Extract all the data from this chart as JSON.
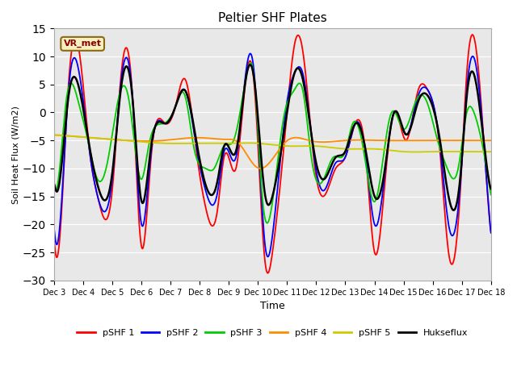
{
  "title": "Peltier SHF Plates",
  "xlabel": "Time",
  "ylabel": "Soil Heat Flux (W/m2)",
  "ylim": [
    -30,
    15
  ],
  "background_color": "#ffffff",
  "plot_bg_color": "#e8e8e8",
  "series_colors": {
    "pSHF 1": "#ff0000",
    "pSHF 2": "#0000ff",
    "pSHF 3": "#00cc00",
    "pSHF 4": "#ff8c00",
    "pSHF 5": "#cccc00",
    "Hukseflux": "#000000"
  },
  "annotation_text": "VR_met",
  "annotation_bg": "#f5f0c0",
  "annotation_border": "#8b6914",
  "annotation_text_color": "#8b0000",
  "tick_labels": [
    "Dec 3",
    "Dec 4",
    "Dec 5",
    "Dec 6",
    "Dec 7",
    "Dec 8",
    "Dec 9",
    "Dec 10",
    "Dec 11",
    "Dec 12",
    "Dec 13",
    "Dec 14",
    "Dec 15",
    "Dec 16",
    "Dec 17",
    "Dec 18"
  ],
  "tick_positions": [
    0,
    24,
    48,
    72,
    96,
    120,
    144,
    168,
    192,
    216,
    240,
    264,
    288,
    312,
    336,
    360
  ],
  "yticks": [
    -30,
    -25,
    -20,
    -15,
    -10,
    -5,
    0,
    5,
    10,
    15
  ]
}
